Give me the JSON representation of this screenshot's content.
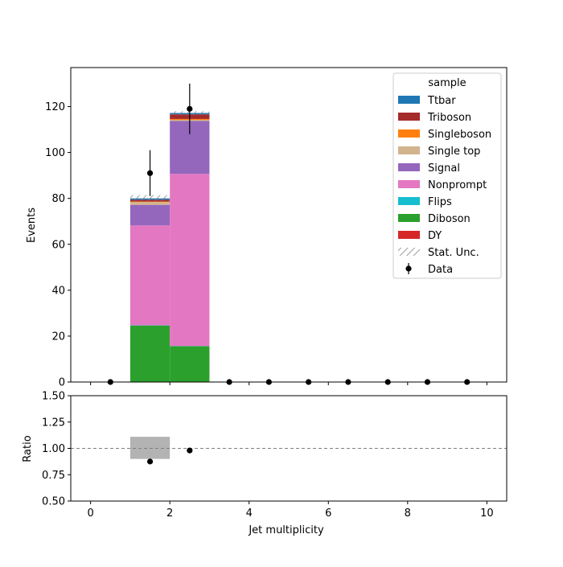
{
  "chart_data": [
    {
      "type": "bar",
      "stacked": true,
      "xlabel": "",
      "ylabel": "Events",
      "xlim": [
        -0.5,
        10.5
      ],
      "ylim": [
        0,
        137
      ],
      "xticks": [
        0,
        2,
        4,
        6,
        8,
        10
      ],
      "yticks": [
        0,
        20,
        40,
        60,
        80,
        100,
        120
      ],
      "bin_edges": [
        0,
        1,
        2,
        3,
        4,
        5,
        6,
        7,
        8,
        9,
        10
      ],
      "legend": {
        "title": "sample",
        "position": "top-right"
      },
      "series": [
        {
          "name": "Ttbar",
          "color": "#1f77b4",
          "values": [
            0,
            0.6,
            0.6,
            0,
            0,
            0,
            0,
            0,
            0,
            0
          ]
        },
        {
          "name": "Triboson",
          "color": "#a52a2a",
          "values": [
            0,
            0.8,
            2.0,
            0,
            0,
            0,
            0,
            0,
            0,
            0
          ]
        },
        {
          "name": "Singleboson",
          "color": "#ff7f0e",
          "values": [
            0,
            0.2,
            0.4,
            0,
            0,
            0,
            0,
            0,
            0,
            0
          ]
        },
        {
          "name": "Single top",
          "color": "#d2b48c",
          "values": [
            0,
            1.2,
            0.5,
            0,
            0,
            0,
            0,
            0,
            0,
            0
          ]
        },
        {
          "name": "Signal",
          "color": "#9467bd",
          "values": [
            0,
            9.0,
            23.0,
            0,
            0,
            0,
            0,
            0,
            0,
            0
          ]
        },
        {
          "name": "Nonprompt",
          "color": "#e377c2",
          "values": [
            0,
            43.5,
            75.0,
            0,
            0,
            0,
            0,
            0,
            0,
            0
          ]
        },
        {
          "name": "Flips",
          "color": "#17becf",
          "values": [
            0,
            0.1,
            0.1,
            0,
            0,
            0,
            0,
            0,
            0,
            0
          ]
        },
        {
          "name": "Diboson",
          "color": "#2ca02c",
          "values": [
            0,
            24.5,
            15.5,
            0,
            0,
            0,
            0,
            0,
            0,
            0
          ]
        },
        {
          "name": "DY",
          "color": "#d62728",
          "values": [
            0,
            0.1,
            0.1,
            0,
            0,
            0,
            0,
            0,
            0,
            0
          ]
        }
      ],
      "stat_unc": {
        "name": "Stat. Unc.",
        "low": [
          0,
          79.0,
          116.4,
          0,
          0,
          0,
          0,
          0,
          0,
          0
        ],
        "high": [
          0,
          81.4,
          118.0,
          0,
          0,
          0,
          0,
          0,
          0,
          0
        ]
      },
      "data": {
        "name": "Data",
        "x": [
          0.5,
          1.5,
          2.5,
          3.5,
          4.5,
          5.5,
          6.5,
          7.5,
          8.5,
          9.5
        ],
        "y": [
          0,
          91,
          119,
          0,
          0,
          0,
          0,
          0,
          0,
          0
        ],
        "err": [
          0,
          10,
          11,
          0,
          0,
          0,
          0,
          0,
          0,
          0
        ]
      }
    },
    {
      "type": "scatter",
      "xlabel": "Jet multiplicity",
      "ylabel": "Ratio",
      "xlim": [
        -0.5,
        10.5
      ],
      "ylim": [
        0.5,
        1.5
      ],
      "xticks": [
        0,
        2,
        4,
        6,
        8,
        10
      ],
      "yticks": [
        0.5,
        0.75,
        1.0,
        1.25,
        1.5
      ],
      "xtick_labels": [
        "0",
        "2",
        "4",
        "6",
        "8",
        "10"
      ],
      "ytick_labels": [
        "0.50",
        "0.75",
        "1.00",
        "1.25",
        "1.50"
      ],
      "reference_line": 1.0,
      "unc_band": {
        "x_low": [
          1
        ],
        "x_high": [
          2
        ],
        "low": [
          0.9
        ],
        "high": [
          1.11
        ]
      },
      "points": {
        "x": [
          1.5,
          2.5
        ],
        "y": [
          0.875,
          0.98
        ]
      }
    }
  ]
}
